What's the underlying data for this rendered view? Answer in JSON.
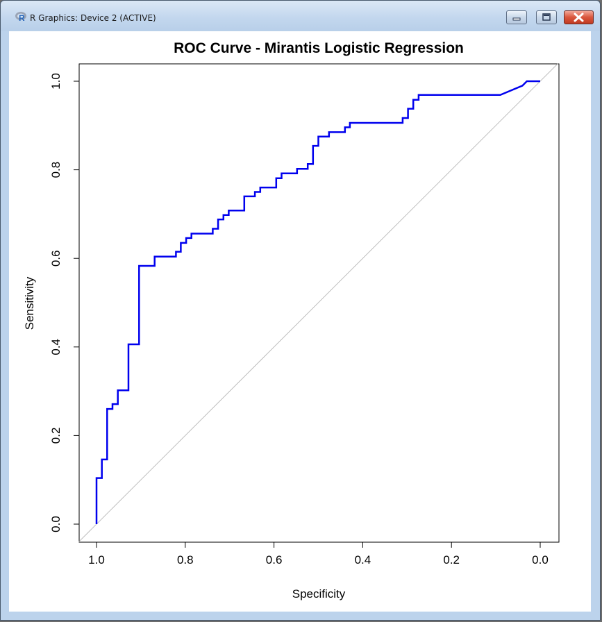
{
  "window": {
    "title": "R Graphics: Device 2 (ACTIVE)",
    "icons": {
      "app": "r-logo-icon",
      "minimize": "minimize-icon",
      "maximize": "maximize-icon",
      "close": "close-icon"
    }
  },
  "colors": {
    "curve": "#0000ee",
    "diagonal": "#bebebe",
    "axis": "#000000"
  },
  "chart_data": {
    "type": "line",
    "title": "ROC Curve - Mirantis Logistic Regression",
    "xlabel": "Specificity",
    "ylabel": "Sensitivity",
    "xlim": [
      1.0,
      0.0
    ],
    "ylim": [
      0.0,
      1.0
    ],
    "x_reversed": true,
    "x_ticks": [
      "1.0",
      "0.8",
      "0.6",
      "0.4",
      "0.2",
      "0.0"
    ],
    "y_ticks": [
      "0.0",
      "0.2",
      "0.4",
      "0.6",
      "0.8",
      "1.0"
    ],
    "grid": false,
    "legend": "none",
    "reference_line": {
      "from": [
        1.0,
        0.0
      ],
      "to": [
        0.0,
        1.0
      ]
    },
    "series": [
      {
        "points": [
          [
            1.0,
            0.0
          ],
          [
            1.0,
            0.104
          ],
          [
            0.988,
            0.104
          ],
          [
            0.988,
            0.146
          ],
          [
            0.976,
            0.146
          ],
          [
            0.976,
            0.26
          ],
          [
            0.964,
            0.26
          ],
          [
            0.964,
            0.271
          ],
          [
            0.952,
            0.271
          ],
          [
            0.952,
            0.302
          ],
          [
            0.928,
            0.302
          ],
          [
            0.928,
            0.406
          ],
          [
            0.904,
            0.406
          ],
          [
            0.904,
            0.583
          ],
          [
            0.869,
            0.583
          ],
          [
            0.869,
            0.604
          ],
          [
            0.821,
            0.604
          ],
          [
            0.821,
            0.615
          ],
          [
            0.81,
            0.615
          ],
          [
            0.81,
            0.635
          ],
          [
            0.798,
            0.635
          ],
          [
            0.798,
            0.646
          ],
          [
            0.786,
            0.646
          ],
          [
            0.786,
            0.656
          ],
          [
            0.738,
            0.656
          ],
          [
            0.738,
            0.667
          ],
          [
            0.726,
            0.667
          ],
          [
            0.726,
            0.688
          ],
          [
            0.714,
            0.688
          ],
          [
            0.714,
            0.698
          ],
          [
            0.702,
            0.698
          ],
          [
            0.702,
            0.708
          ],
          [
            0.667,
            0.708
          ],
          [
            0.667,
            0.74
          ],
          [
            0.643,
            0.74
          ],
          [
            0.643,
            0.75
          ],
          [
            0.631,
            0.75
          ],
          [
            0.631,
            0.76
          ],
          [
            0.595,
            0.76
          ],
          [
            0.595,
            0.781
          ],
          [
            0.583,
            0.781
          ],
          [
            0.583,
            0.792
          ],
          [
            0.548,
            0.792
          ],
          [
            0.548,
            0.802
          ],
          [
            0.524,
            0.802
          ],
          [
            0.524,
            0.813
          ],
          [
            0.512,
            0.813
          ],
          [
            0.512,
            0.854
          ],
          [
            0.5,
            0.854
          ],
          [
            0.5,
            0.875
          ],
          [
            0.476,
            0.875
          ],
          [
            0.476,
            0.885
          ],
          [
            0.44,
            0.885
          ],
          [
            0.44,
            0.896
          ],
          [
            0.429,
            0.896
          ],
          [
            0.429,
            0.906
          ],
          [
            0.31,
            0.906
          ],
          [
            0.31,
            0.917
          ],
          [
            0.298,
            0.917
          ],
          [
            0.298,
            0.938
          ],
          [
            0.286,
            0.938
          ],
          [
            0.286,
            0.958
          ],
          [
            0.274,
            0.958
          ],
          [
            0.274,
            0.969
          ],
          [
            0.09,
            0.969
          ],
          [
            0.04,
            0.99
          ],
          [
            0.03,
            1.0
          ],
          [
            0.0,
            1.0
          ]
        ]
      }
    ]
  }
}
